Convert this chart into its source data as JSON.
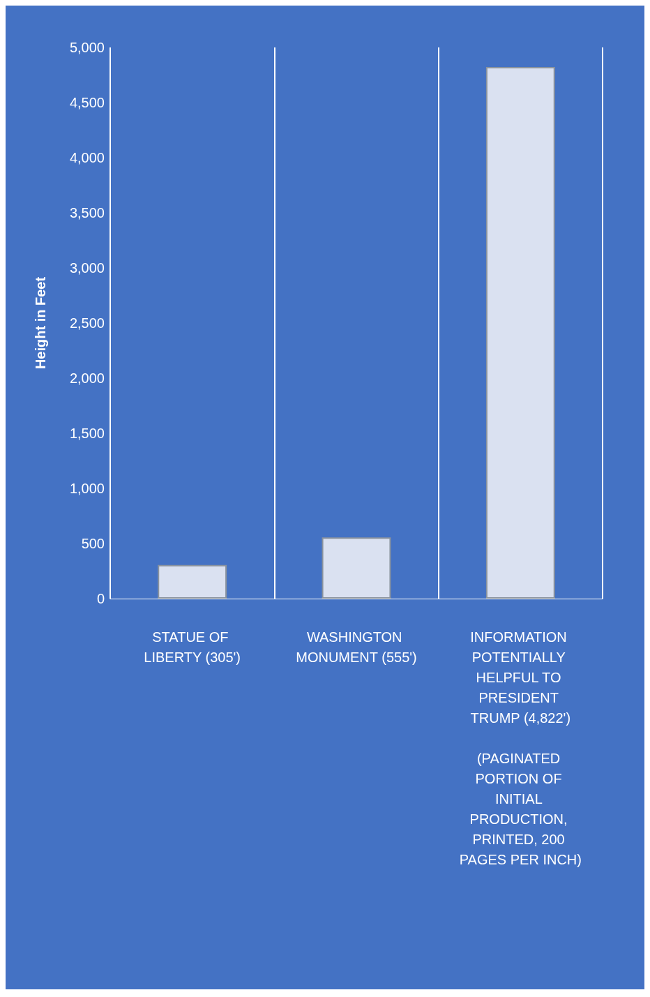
{
  "chart_data": {
    "type": "bar",
    "ylabel": "Height in Feet",
    "categories": [
      "STATUE OF LIBERTY (305')",
      "WASHINGTON MONUMENT (555')",
      "INFORMATION POTENTIALLY HELPFUL TO PRESIDENT TRUMP (4,822')\n\n(PAGINATED PORTION OF INITIAL PRODUCTION, PRINTED, 200 PAGES PER INCH)"
    ],
    "values": [
      305,
      555,
      4822
    ],
    "color": "#dae1f1",
    "ylim": [
      0,
      5000
    ],
    "yticks": [
      0,
      500,
      {
        "value": 1000,
        "label": "1,000"
      },
      {
        "value": 1500,
        "label": "1,500"
      },
      {
        "value": 2000,
        "label": "2,000"
      },
      {
        "value": 2500,
        "label": "2,500"
      },
      {
        "value": 3000,
        "label": "3,000"
      },
      {
        "value": 3500,
        "label": "3,500"
      },
      {
        "value": 4000,
        "label": "4,000"
      },
      {
        "value": 4500,
        "label": "4,500"
      },
      {
        "value": 5000,
        "label": "5,000"
      }
    ],
    "grid": "x"
  }
}
